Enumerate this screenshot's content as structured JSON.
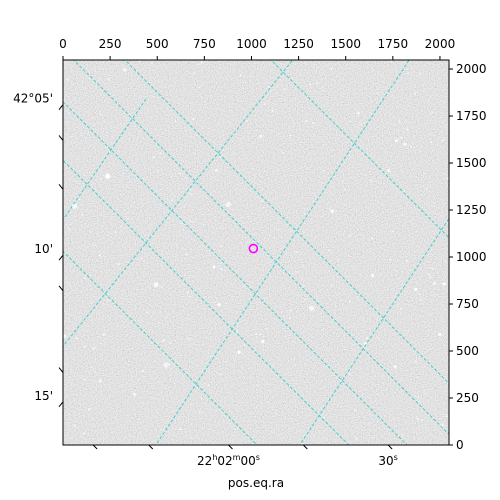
{
  "chart_data": {
    "type": "image",
    "xlabel": "pos.eq.ra",
    "pixel_axes": {
      "x_range": [
        0,
        2048
      ],
      "y_range": [
        0,
        2048
      ],
      "x_ticks": [
        0,
        250,
        500,
        750,
        1000,
        1250,
        1500,
        1750,
        2000
      ],
      "y_ticks": [
        0,
        250,
        500,
        750,
        1000,
        1250,
        1500,
        1750,
        2000
      ],
      "x_tick_labels": [
        "0",
        "250",
        "500",
        "750",
        "1000",
        "1250",
        "1500",
        "1750",
        "2000"
      ],
      "y_tick_labels": [
        "0",
        "250",
        "500",
        "750",
        "1000",
        "1250",
        "1500",
        "1750",
        "2000"
      ]
    },
    "world_ticks": {
      "ra": [
        {
          "label_main": "22",
          "label_sup": "h",
          "label_main2": "02",
          "label_sup2": "m",
          "label_main3": "00",
          "label_sup3": "s",
          "x": 878
        },
        {
          "label_main": "30",
          "label_sup": "s",
          "label_main2": "",
          "label_sup2": "",
          "label_main3": "",
          "label_sup3": "",
          "x": 1725
        }
      ],
      "dec": [
        {
          "label": "42°05'",
          "y": 1810
        },
        {
          "label": "10'",
          "y": 1010
        },
        {
          "label": "15'",
          "y": 230
        }
      ]
    },
    "grid": true,
    "grid_color": "#33cccc",
    "grid_lines": [
      {
        "from": [
          -16,
          1530
        ],
        "to": [
          1610,
          -94
        ]
      },
      {
        "from": [
          -40,
          1865
        ],
        "to": [
          2183,
          -358
        ]
      },
      {
        "from": [
          300,
          2076
        ],
        "to": [
          2200,
          176
        ]
      },
      {
        "from": [
          1075,
          2076
        ],
        "to": [
          2200,
          951
        ]
      },
      {
        "from": [
          -100,
          2205
        ],
        "to": [
          2330,
          -225
        ]
      },
      {
        "from": [
          -60,
          1090
        ],
        "to": [
          1280,
          -250
        ]
      },
      {
        "from": [
          -40,
          475
        ],
        "to": [
          1320,
          2175
        ]
      },
      {
        "from": [
          500,
          10
        ],
        "to": [
          1930,
          2190
        ]
      },
      {
        "from": [
          1250,
          -10
        ],
        "to": [
          2150,
          1360
        ]
      },
      {
        "from": [
          -20,
          1170
        ],
        "to": [
          440,
          1840
        ]
      }
    ],
    "marker": {
      "x": 1010,
      "y": 1045,
      "color": "#ff00ff"
    },
    "background_color": "#777777",
    "colors": {
      "grid": "#33cccc",
      "marker": "#ff00ff",
      "frame": "#000000"
    }
  }
}
